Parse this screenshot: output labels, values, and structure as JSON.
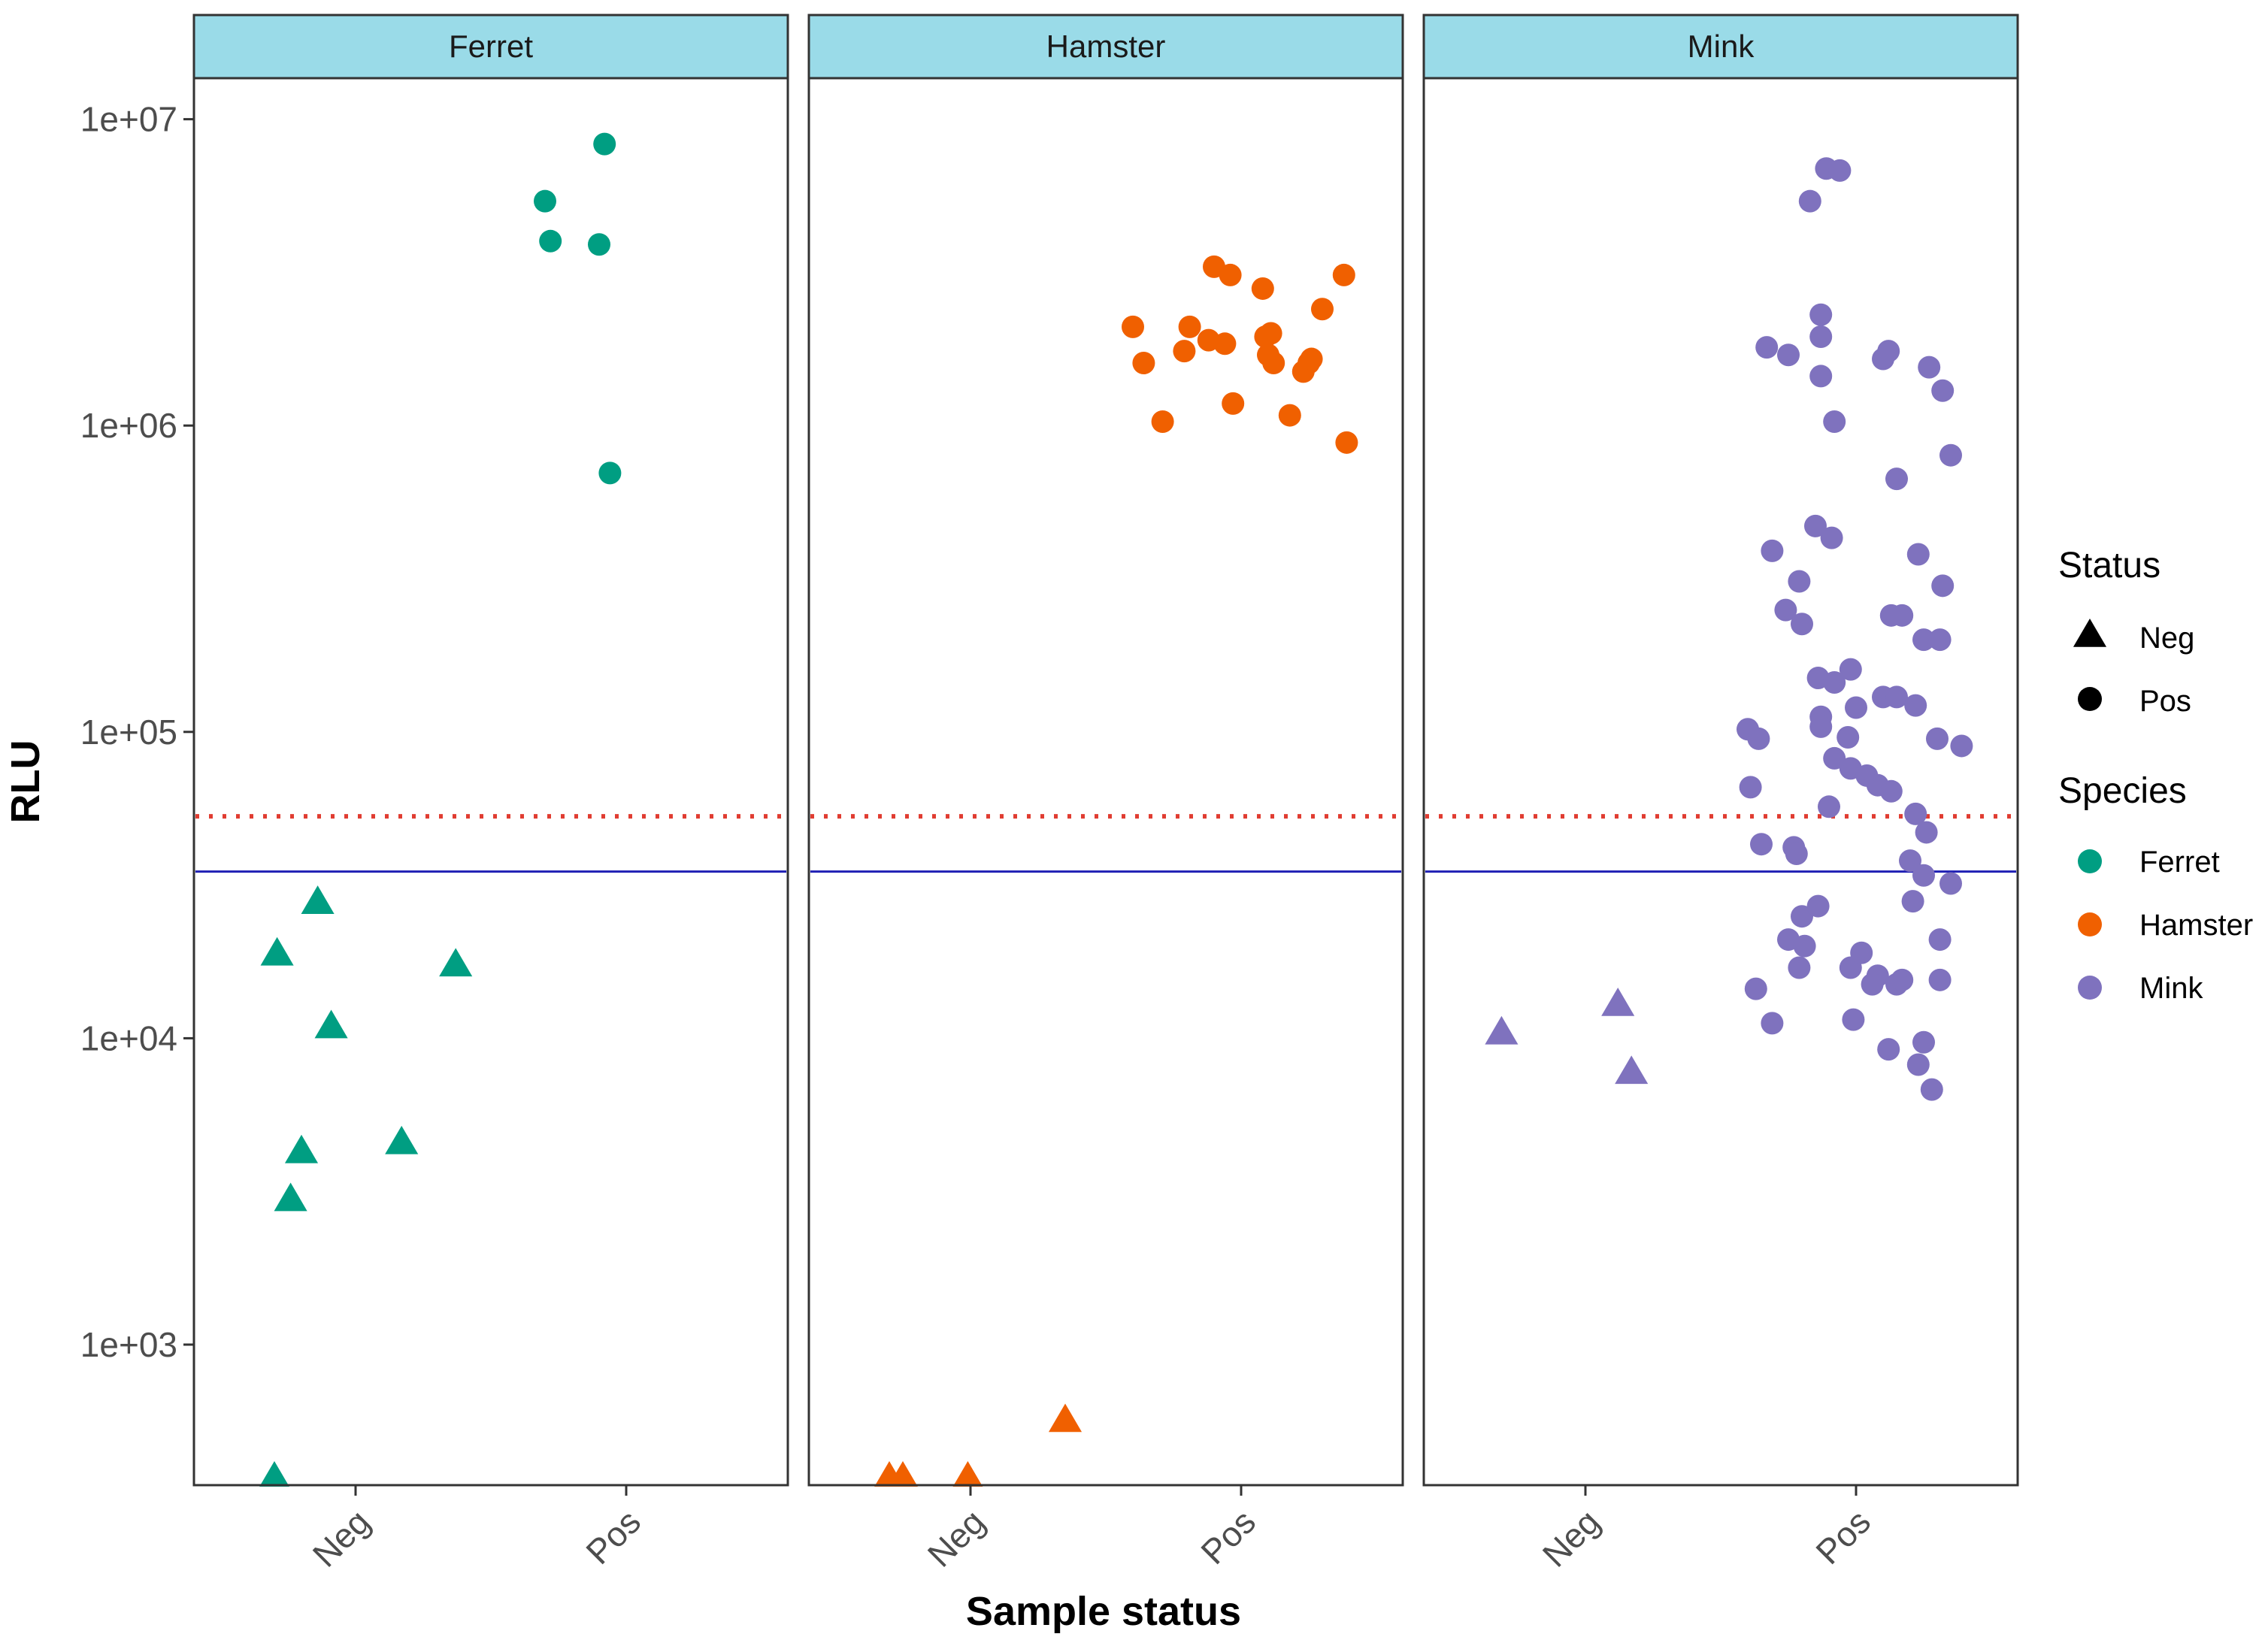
{
  "chart_data": {
    "type": "scatter",
    "xlabel": "Sample status",
    "ylabel": "RLU",
    "y_scale": "log10",
    "ylim": [
      370,
      20000000
    ],
    "y_ticks": [
      "1e+03",
      "1e+04",
      "1e+05",
      "1e+06",
      "1e+07"
    ],
    "y_tick_values": [
      1000,
      10000,
      100000,
      1000000,
      10000000
    ],
    "x_categories": [
      "Neg",
      "Pos"
    ],
    "grid": false,
    "facets": [
      "Ferret",
      "Hamster",
      "Mink"
    ],
    "reference_lines": [
      {
        "style": "dotted",
        "color": "#e03c31",
        "value": 53000
      },
      {
        "style": "solid",
        "color": "#1f1fb4",
        "value": 35000
      }
    ],
    "colors": {
      "Ferret": "#009e82",
      "Hamster": "#f06000",
      "Mink": "#7f72be"
    },
    "legend": {
      "position": "right",
      "status_title": "Status",
      "status_items": [
        {
          "label": "Neg",
          "shape": "triangle"
        },
        {
          "label": "Pos",
          "shape": "circle"
        }
      ],
      "species_title": "Species",
      "species_items": [
        "Ferret",
        "Hamster",
        "Mink"
      ]
    },
    "series": [
      {
        "species": "Ferret",
        "status": "Neg",
        "points": [
          [
            -0.3,
            370
          ],
          [
            -0.14,
            28000
          ],
          [
            -0.29,
            19000
          ],
          [
            -0.09,
            11000
          ],
          [
            -0.2,
            4300
          ],
          [
            -0.24,
            3000
          ],
          [
            0.17,
            4600
          ],
          [
            0.37,
            17500
          ]
        ]
      },
      {
        "species": "Ferret",
        "status": "Pos",
        "points": [
          [
            -0.08,
            8300000
          ],
          [
            -0.3,
            5400000
          ],
          [
            -0.28,
            4000000
          ],
          [
            -0.1,
            3900000
          ],
          [
            -0.06,
            700000
          ]
        ]
      },
      {
        "species": "Hamster",
        "status": "Neg",
        "points": [
          [
            -0.3,
            370
          ],
          [
            -0.25,
            370
          ],
          [
            -0.01,
            370
          ],
          [
            0.35,
            570
          ]
        ]
      },
      {
        "species": "Hamster",
        "status": "Pos",
        "points": [
          [
            -0.4,
            2100000
          ],
          [
            -0.36,
            1600000
          ],
          [
            -0.29,
            1030000
          ],
          [
            -0.21,
            1750000
          ],
          [
            -0.19,
            2100000
          ],
          [
            -0.12,
            1900000
          ],
          [
            -0.1,
            3300000
          ],
          [
            -0.06,
            1850000
          ],
          [
            -0.04,
            3100000
          ],
          [
            -0.03,
            1180000
          ],
          [
            0.08,
            2800000
          ],
          [
            0.09,
            1950000
          ],
          [
            0.1,
            1700000
          ],
          [
            0.11,
            2000000
          ],
          [
            0.12,
            1600000
          ],
          [
            0.18,
            1080000
          ],
          [
            0.23,
            1500000
          ],
          [
            0.25,
            1600000
          ],
          [
            0.26,
            1650000
          ],
          [
            0.3,
            2400000
          ],
          [
            0.38,
            3100000
          ],
          [
            0.39,
            880000
          ]
        ]
      },
      {
        "species": "Mink",
        "status": "Neg",
        "points": [
          [
            -0.31,
            10500
          ],
          [
            0.12,
            13000
          ],
          [
            0.17,
            7800
          ]
        ]
      },
      {
        "species": "Mink",
        "status": "Pos",
        "points": [
          [
            -0.17,
            5400000
          ],
          [
            -0.11,
            6900000
          ],
          [
            -0.06,
            6800000
          ],
          [
            -0.33,
            1800000
          ],
          [
            -0.25,
            1700000
          ],
          [
            -0.13,
            2300000
          ],
          [
            -0.13,
            1950000
          ],
          [
            -0.13,
            1450000
          ],
          [
            -0.08,
            1030000
          ],
          [
            0.1,
            1650000
          ],
          [
            0.12,
            1750000
          ],
          [
            0.27,
            1550000
          ],
          [
            0.32,
            1300000
          ],
          [
            0.35,
            800000
          ],
          [
            0.15,
            670000
          ],
          [
            -0.31,
            390000
          ],
          [
            -0.15,
            470000
          ],
          [
            -0.09,
            430000
          ],
          [
            0.23,
            380000
          ],
          [
            -0.21,
            310000
          ],
          [
            -0.26,
            250000
          ],
          [
            -0.2,
            225000
          ],
          [
            0.13,
            240000
          ],
          [
            0.17,
            240000
          ],
          [
            0.32,
            300000
          ],
          [
            0.25,
            200000
          ],
          [
            0.31,
            200000
          ],
          [
            -0.14,
            150000
          ],
          [
            -0.02,
            160000
          ],
          [
            -0.13,
            112000
          ],
          [
            -0.13,
            104000
          ],
          [
            -0.08,
            145000
          ],
          [
            0.0,
            120000
          ],
          [
            0.1,
            130000
          ],
          [
            0.15,
            130000
          ],
          [
            -0.4,
            102000
          ],
          [
            -0.36,
            95000
          ],
          [
            -0.03,
            96000
          ],
          [
            0.22,
            122000
          ],
          [
            0.3,
            95000
          ],
          [
            0.39,
            90000
          ],
          [
            -0.08,
            82000
          ],
          [
            -0.02,
            76000
          ],
          [
            0.04,
            72000
          ],
          [
            0.08,
            67000
          ],
          [
            0.13,
            64000
          ],
          [
            -0.39,
            66000
          ],
          [
            -0.1,
            57000
          ],
          [
            0.22,
            54000
          ],
          [
            0.26,
            47000
          ],
          [
            -0.35,
            43000
          ],
          [
            -0.23,
            42000
          ],
          [
            -0.22,
            40000
          ],
          [
            0.2,
            38000
          ],
          [
            0.25,
            34000
          ],
          [
            0.35,
            32000
          ],
          [
            -0.2,
            25000
          ],
          [
            -0.14,
            27000
          ],
          [
            0.21,
            28000
          ],
          [
            -0.25,
            21000
          ],
          [
            -0.19,
            20000
          ],
          [
            -0.02,
            17000
          ],
          [
            0.02,
            19000
          ],
          [
            0.15,
            15000
          ],
          [
            -0.21,
            17000
          ],
          [
            0.08,
            16000
          ],
          [
            0.17,
            15500
          ],
          [
            0.31,
            21000
          ],
          [
            0.31,
            15500
          ],
          [
            -0.37,
            14500
          ],
          [
            -0.31,
            11200
          ],
          [
            -0.01,
            11500
          ],
          [
            0.12,
            9200
          ],
          [
            0.25,
            9700
          ],
          [
            0.23,
            8200
          ],
          [
            0.28,
            6800
          ],
          [
            0.06,
            15000
          ]
        ]
      }
    ]
  }
}
